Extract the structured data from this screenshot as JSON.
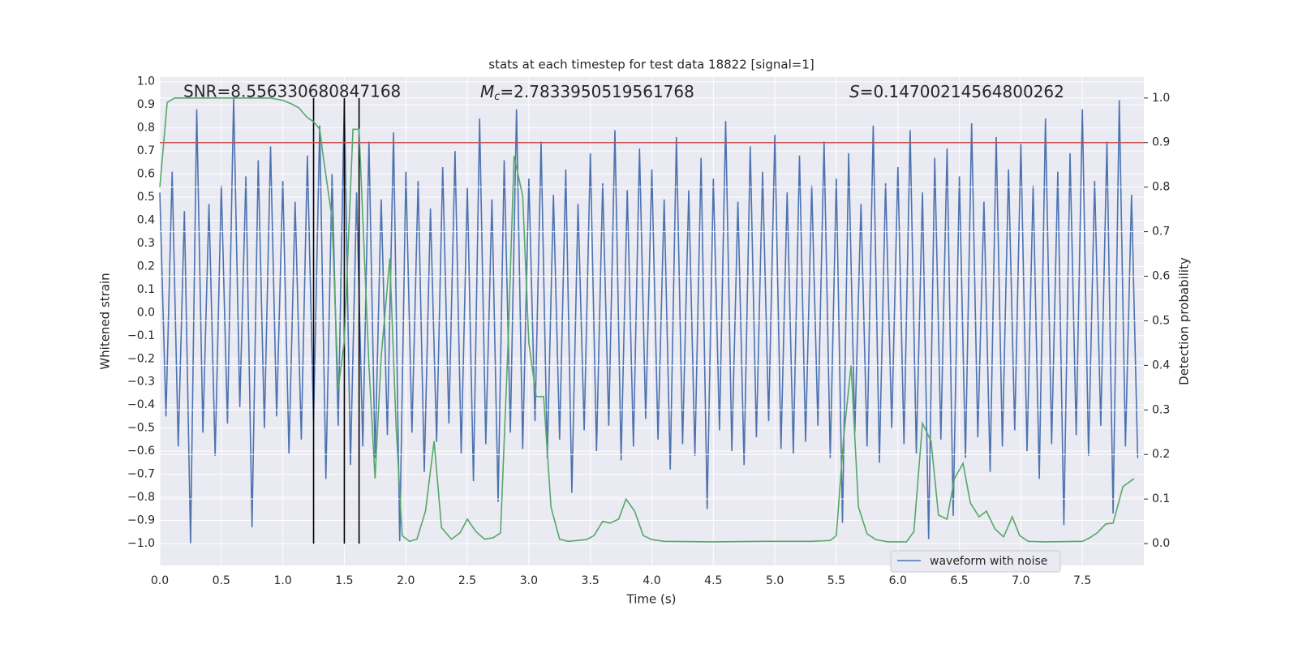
{
  "chart_data": {
    "type": "line",
    "title": "stats at each timestep for test data 18822 [signal=1]",
    "xlabel": "Time (s)",
    "ylabel": "Whitened strain",
    "y2label": "Detection probability",
    "annotations": {
      "snr": "SNR=8.556330680847168",
      "mc": {
        "symbol": "M",
        "subscript": "c",
        "text": "=2.7833950519561768"
      },
      "s": {
        "symbol": "S",
        "text": "=0.14700214564800262"
      }
    },
    "xlim": [
      0,
      8
    ],
    "ylim": [
      -1.095,
      1.02
    ],
    "y2lim": [
      -0.049,
      1.047
    ],
    "grid": true,
    "legend": "lower right",
    "xticks": [
      {
        "value": 0,
        "label": "0.0"
      },
      0.5,
      {
        "value": 1,
        "label": "1.0"
      },
      1.5,
      {
        "value": 2,
        "label": "2.0"
      },
      2.5,
      {
        "value": 3,
        "label": "3.0"
      },
      3.5,
      {
        "value": 4,
        "label": "4.0"
      },
      4.5,
      {
        "value": 5,
        "label": "5.0"
      },
      5.5,
      {
        "value": 6,
        "label": "6.0"
      },
      6.5,
      {
        "value": 7,
        "label": "7.0"
      },
      7.5
    ],
    "yticks": [
      {
        "value": -1,
        "label": "−1.0"
      },
      {
        "value": -0.9,
        "label": "−0.9"
      },
      {
        "value": -0.8,
        "label": "−0.8"
      },
      {
        "value": -0.7,
        "label": "−0.7"
      },
      {
        "value": -0.6,
        "label": "−0.6"
      },
      {
        "value": -0.5,
        "label": "−0.5"
      },
      {
        "value": -0.4,
        "label": "−0.4"
      },
      {
        "value": -0.3,
        "label": "−0.3"
      },
      {
        "value": -0.2,
        "label": "−0.2"
      },
      {
        "value": -0.1,
        "label": "−0.1"
      },
      {
        "value": 0,
        "label": "0.0"
      },
      0.1,
      0.2,
      0.3,
      0.4,
      0.5,
      0.6,
      0.7,
      0.8,
      0.9,
      {
        "value": 1,
        "label": "1.0"
      }
    ],
    "y2ticks": [
      {
        "value": 0,
        "label": "0.0"
      },
      0.1,
      0.2,
      0.3,
      0.4,
      0.5,
      0.6,
      0.7,
      0.8,
      0.9,
      {
        "value": 1,
        "label": "1.0"
      }
    ],
    "threshold": {
      "value": 0.9,
      "color": "#c44e52",
      "axis": "y2"
    },
    "vlines": {
      "values": [
        1.25,
        1.5,
        1.62
      ],
      "color": "#000000"
    },
    "series": [
      {
        "name": "waveform with noise",
        "color": "#4c72b0",
        "x": [
          0,
          0.05,
          0.1,
          0.15,
          0.2,
          0.25,
          0.3,
          0.35,
          0.4,
          0.45,
          0.5,
          0.55,
          0.6,
          0.65,
          0.7,
          0.75,
          0.8,
          0.85,
          0.9,
          0.95,
          1,
          1.05,
          1.1,
          1.15,
          1.2,
          1.25,
          1.3,
          1.35,
          1.4,
          1.45,
          1.5,
          1.55,
          1.6,
          1.65,
          1.7,
          1.75,
          1.8,
          1.85,
          1.9,
          1.95,
          2,
          2.05,
          2.1,
          2.15,
          2.2,
          2.25,
          2.3,
          2.35,
          2.4,
          2.45,
          2.5,
          2.55,
          2.6,
          2.65,
          2.7,
          2.75,
          2.8,
          2.85,
          2.9,
          2.95,
          3,
          3.05,
          3.1,
          3.15,
          3.2,
          3.25,
          3.3,
          3.35,
          3.4,
          3.45,
          3.5,
          3.55,
          3.6,
          3.65,
          3.7,
          3.75,
          3.8,
          3.85,
          3.9,
          3.95,
          4,
          4.05,
          4.1,
          4.15,
          4.2,
          4.25,
          4.3,
          4.35,
          4.4,
          4.45,
          4.5,
          4.55,
          4.6,
          4.65,
          4.7,
          4.75,
          4.8,
          4.85,
          4.9,
          4.95,
          5,
          5.05,
          5.1,
          5.15,
          5.2,
          5.25,
          5.3,
          5.35,
          5.4,
          5.45,
          5.5,
          5.55,
          5.6,
          5.65,
          5.7,
          5.75,
          5.8,
          5.85,
          5.9,
          5.95,
          6,
          6.05,
          6.1,
          6.15,
          6.2,
          6.25,
          6.3,
          6.35,
          6.4,
          6.45,
          6.5,
          6.55,
          6.6,
          6.65,
          6.7,
          6.75,
          6.8,
          6.85,
          6.9,
          6.95,
          7,
          7.05,
          7.1,
          7.15,
          7.2,
          7.25,
          7.3,
          7.35,
          7.4,
          7.45,
          7.5,
          7.55,
          7.6,
          7.65,
          7.7,
          7.75,
          7.8,
          7.85,
          7.9,
          7.95
        ],
        "values": [
          0.52,
          -0.45,
          0.61,
          -0.58,
          0.44,
          -1.0,
          0.88,
          -0.52,
          0.47,
          -0.62,
          0.55,
          -0.48,
          0.93,
          -0.41,
          0.59,
          -0.93,
          0.66,
          -0.5,
          0.72,
          -0.45,
          0.57,
          -0.61,
          0.48,
          -0.55,
          0.68,
          -0.47,
          0.81,
          -0.72,
          0.6,
          -0.49,
          0.92,
          -0.66,
          0.52,
          -0.58,
          0.74,
          -0.63,
          0.49,
          -0.53,
          0.78,
          -0.99,
          0.61,
          -0.52,
          0.57,
          -0.69,
          0.45,
          -0.56,
          0.63,
          -0.48,
          0.7,
          -0.61,
          0.54,
          -0.73,
          0.84,
          -0.57,
          0.49,
          -0.82,
          0.66,
          -0.52,
          0.88,
          -0.59,
          0.58,
          -0.47,
          0.74,
          -0.63,
          0.51,
          -0.55,
          0.62,
          -0.78,
          0.47,
          -0.51,
          0.69,
          -0.6,
          0.56,
          -0.49,
          0.79,
          -0.64,
          0.53,
          -0.58,
          0.71,
          -0.46,
          0.62,
          -0.55,
          0.49,
          -0.68,
          0.76,
          -0.57,
          0.53,
          -0.62,
          0.67,
          -0.85,
          0.58,
          -0.51,
          0.83,
          -0.6,
          0.48,
          -0.66,
          0.72,
          -0.54,
          0.61,
          -0.47,
          0.77,
          -0.59,
          0.52,
          -0.61,
          0.68,
          -0.56,
          0.55,
          -0.49,
          0.74,
          -0.63,
          0.58,
          -0.91,
          0.69,
          -0.52,
          0.47,
          -0.58,
          0.81,
          -0.65,
          0.56,
          -0.5,
          0.63,
          -0.57,
          0.79,
          -0.61,
          0.52,
          -0.98,
          0.67,
          -0.55,
          0.71,
          -0.88,
          0.59,
          -0.63,
          0.82,
          -0.54,
          0.48,
          -0.69,
          0.76,
          -0.58,
          0.62,
          -0.51,
          0.73,
          -0.6,
          0.55,
          -0.72,
          0.84,
          -0.57,
          0.61,
          -0.92,
          0.69,
          -0.53,
          0.88,
          -0.62,
          0.57,
          -0.49,
          0.74,
          -0.87,
          0.92,
          -0.58,
          0.51,
          -0.63
        ]
      },
      {
        "color": "#55a868",
        "axis": "y2",
        "x": [
          0,
          0.06,
          0.12,
          0.9,
          1,
          1.07,
          1.13,
          1.2,
          1.25,
          1.3,
          1.33,
          1.4,
          1.45,
          1.5,
          1.57,
          1.62,
          1.65,
          1.7,
          1.75,
          1.8,
          1.87,
          1.92,
          1.97,
          2.03,
          2.09,
          2.16,
          2.23,
          2.29,
          2.37,
          2.44,
          2.5,
          2.57,
          2.64,
          2.71,
          2.77,
          2.83,
          2.88,
          2.95,
          3,
          3.06,
          3.12,
          3.18,
          3.25,
          3.32,
          3.4,
          3.47,
          3.53,
          3.6,
          3.66,
          3.73,
          3.79,
          3.86,
          3.93,
          4,
          4.1,
          4.5,
          4.9,
          5.3,
          5.45,
          5.5,
          5.56,
          5.62,
          5.68,
          5.75,
          5.82,
          5.92,
          6.07,
          6.13,
          6.2,
          6.27,
          6.33,
          6.4,
          6.46,
          6.53,
          6.59,
          6.66,
          6.72,
          6.79,
          6.86,
          6.93,
          6.99,
          7.06,
          7.2,
          7.5,
          7.56,
          7.62,
          7.69,
          7.75,
          7.83,
          7.92
        ],
        "values": [
          0.8,
          0.99,
          1.0,
          1.0,
          0.995,
          0.987,
          0.978,
          0.956,
          0.947,
          0.93,
          0.865,
          0.73,
          0.346,
          0.455,
          0.93,
          0.93,
          0.73,
          0.4,
          0.146,
          0.42,
          0.64,
          0.27,
          0.018,
          0.005,
          0.01,
          0.073,
          0.23,
          0.036,
          0.01,
          0.024,
          0.055,
          0.027,
          0.01,
          0.013,
          0.024,
          0.44,
          0.87,
          0.78,
          0.45,
          0.33,
          0.33,
          0.082,
          0.01,
          0.005,
          0.007,
          0.009,
          0.018,
          0.05,
          0.046,
          0.055,
          0.1,
          0.073,
          0.018,
          0.009,
          0.005,
          0.004,
          0.005,
          0.005,
          0.007,
          0.018,
          0.24,
          0.4,
          0.082,
          0.022,
          0.009,
          0.004,
          0.004,
          0.027,
          0.27,
          0.23,
          0.064,
          0.055,
          0.146,
          0.18,
          0.091,
          0.06,
          0.073,
          0.033,
          0.015,
          0.06,
          0.018,
          0.005,
          0.004,
          0.005,
          0.013,
          0.024,
          0.044,
          0.046,
          0.128,
          0.146
        ]
      }
    ]
  }
}
